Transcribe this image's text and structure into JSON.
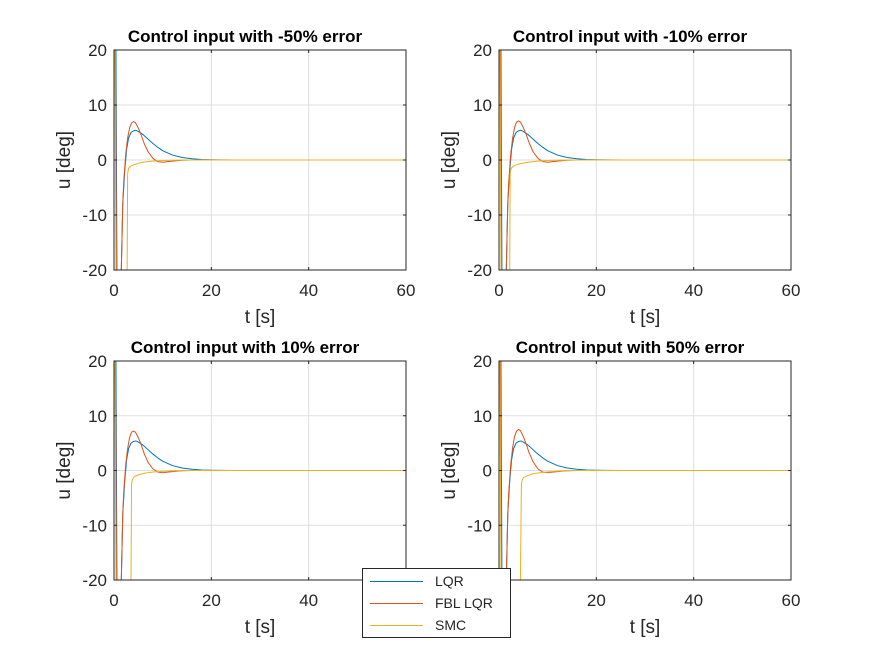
{
  "figure": {
    "colors": {
      "LQR": "#0072BD",
      "FBL LQR": "#D95319",
      "SMC": "#EDB120",
      "axis": "#262626",
      "grid": "#dfdfdf"
    }
  },
  "legend": {
    "location": "bottom-center",
    "entries": [
      {
        "name": "LQR",
        "color": "#0072BD"
      },
      {
        "name": "FBL LQR",
        "color": "#D95319"
      },
      {
        "name": "SMC",
        "color": "#EDB120"
      }
    ]
  },
  "chart_data": [
    {
      "type": "line",
      "title": "Control input with -50% error",
      "xlabel": "t [s]",
      "ylabel": "u [deg]",
      "xlim": [
        0,
        60
      ],
      "ylim": [
        -20,
        20
      ],
      "xticks": [
        "0",
        "20",
        "40",
        "60"
      ],
      "yticks": [
        "-20",
        "-10",
        "0",
        "10",
        "20"
      ],
      "grid": true,
      "series": [
        {
          "name": "LQR",
          "x": [
            0,
            0.2,
            0.4,
            0.6,
            0.8,
            1.2,
            1.5,
            1.8,
            2.2,
            2.6,
            3.0,
            3.5,
            4.0,
            4.5,
            5.0,
            6.0,
            7.0,
            8.0,
            9.0,
            10,
            12,
            14,
            16,
            18,
            20,
            22,
            25,
            30,
            40,
            50,
            60
          ],
          "y": [
            20,
            20,
            20,
            -20,
            -20,
            -20,
            -20,
            -8,
            -2,
            2,
            4,
            5,
            5.3,
            5.4,
            5.2,
            4.6,
            3.8,
            3.0,
            2.3,
            1.7,
            0.9,
            0.45,
            0.22,
            0.1,
            0.05,
            0.02,
            0,
            0,
            0,
            0,
            0
          ]
        },
        {
          "name": "FBL LQR",
          "x": [
            0,
            0.2,
            0.3,
            0.5,
            0.8,
            1.2,
            1.5,
            1.8,
            2.0,
            2.4,
            2.8,
            3.2,
            3.6,
            4.0,
            4.4,
            5.0,
            5.6,
            6.2,
            7.0,
            8.0,
            9.0,
            10,
            11,
            12,
            14,
            16,
            20,
            30,
            40,
            50,
            60
          ],
          "y": [
            20,
            20,
            20,
            -20,
            -20,
            -20,
            -20,
            -8,
            -4,
            1,
            4,
            5.8,
            6.7,
            7.0,
            6.8,
            5.8,
            4.5,
            3.0,
            1.5,
            0.3,
            -0.3,
            -0.4,
            -0.3,
            -0.2,
            -0.05,
            0,
            0,
            0,
            0,
            0,
            0
          ]
        },
        {
          "name": "SMC",
          "x": [
            0,
            0.1,
            0.2,
            0.4,
            0.8,
            1.2,
            1.8,
            2.4,
            2.7,
            2.8,
            3.0,
            3.5,
            4.0,
            5.0,
            6.0,
            7.0,
            8.0,
            10,
            12,
            15,
            20,
            30,
            40,
            50,
            60
          ],
          "y": [
            20,
            20,
            20,
            -20,
            -20,
            -20,
            -20,
            -20,
            -20,
            -2.5,
            -1.5,
            -1.1,
            -0.9,
            -0.6,
            -0.4,
            -0.3,
            -0.2,
            -0.1,
            -0.05,
            0,
            0,
            0,
            0,
            0,
            0
          ]
        }
      ]
    },
    {
      "type": "line",
      "title": "Control input with -10% error",
      "xlabel": "t [s]",
      "ylabel": "u [deg]",
      "xlim": [
        0,
        60
      ],
      "ylim": [
        -20,
        20
      ],
      "xticks": [
        "0",
        "20",
        "40",
        "60"
      ],
      "yticks": [
        "-20",
        "-10",
        "0",
        "10",
        "20"
      ],
      "grid": true,
      "series": [
        {
          "name": "LQR",
          "x": [
            0,
            0.2,
            0.4,
            0.6,
            0.8,
            1.2,
            1.5,
            1.8,
            2.2,
            2.6,
            3.0,
            3.5,
            4.0,
            4.5,
            5.0,
            6.0,
            7.0,
            8.0,
            9.0,
            10,
            12,
            14,
            16,
            18,
            20,
            22,
            25,
            30,
            40,
            50,
            60
          ],
          "y": [
            20,
            20,
            20,
            -20,
            -20,
            -20,
            -20,
            -8,
            -2,
            2,
            4,
            5,
            5.3,
            5.4,
            5.2,
            4.6,
            3.8,
            3.0,
            2.3,
            1.7,
            0.9,
            0.45,
            0.22,
            0.1,
            0.05,
            0.02,
            0,
            0,
            0,
            0,
            0
          ]
        },
        {
          "name": "FBL LQR",
          "x": [
            0,
            0.2,
            0.3,
            0.5,
            0.8,
            1.2,
            1.5,
            1.8,
            2.0,
            2.4,
            2.8,
            3.2,
            3.6,
            4.0,
            4.4,
            5.0,
            5.6,
            6.2,
            7.0,
            8.0,
            9.0,
            10,
            11,
            12,
            14,
            16,
            20,
            30,
            40,
            50,
            60
          ],
          "y": [
            20,
            20,
            20,
            -20,
            -20,
            -20,
            -20,
            -8,
            -4,
            1,
            4,
            5.9,
            6.9,
            7.1,
            6.9,
            5.9,
            4.6,
            3.1,
            1.5,
            0.3,
            -0.3,
            -0.4,
            -0.3,
            -0.2,
            -0.05,
            0,
            0,
            0,
            0,
            0,
            0
          ]
        },
        {
          "name": "SMC",
          "x": [
            0,
            0.1,
            0.2,
            0.4,
            0.8,
            1.2,
            1.8,
            2.0,
            2.2,
            2.3,
            2.5,
            3.0,
            3.5,
            4.0,
            5.0,
            6.0,
            7.0,
            8.0,
            10,
            12,
            15,
            20,
            30,
            40,
            50,
            60
          ],
          "y": [
            20,
            20,
            20,
            -20,
            -20,
            -20,
            -20,
            -20,
            -20,
            -2.5,
            -1.5,
            -1.1,
            -0.9,
            -0.75,
            -0.55,
            -0.4,
            -0.3,
            -0.2,
            -0.1,
            -0.05,
            0,
            0,
            0,
            0,
            0,
            0
          ]
        }
      ]
    },
    {
      "type": "line",
      "title": "Control input with 10% error",
      "xlabel": "t [s]",
      "ylabel": "u [deg]",
      "xlim": [
        0,
        60
      ],
      "ylim": [
        -20,
        20
      ],
      "xticks": [
        "0",
        "20",
        "40",
        "60"
      ],
      "yticks": [
        "-20",
        "-10",
        "0",
        "10",
        "20"
      ],
      "grid": true,
      "series": [
        {
          "name": "LQR",
          "x": [
            0,
            0.2,
            0.4,
            0.6,
            0.8,
            1.2,
            1.5,
            1.8,
            2.2,
            2.6,
            3.0,
            3.5,
            4.0,
            4.5,
            5.0,
            6.0,
            7.0,
            8.0,
            9.0,
            10,
            12,
            14,
            16,
            18,
            20,
            22,
            25,
            30,
            40,
            50,
            60
          ],
          "y": [
            20,
            20,
            20,
            -20,
            -20,
            -20,
            -20,
            -8,
            -2,
            2,
            4,
            5,
            5.3,
            5.4,
            5.2,
            4.6,
            3.8,
            3.0,
            2.3,
            1.7,
            0.9,
            0.45,
            0.22,
            0.1,
            0.05,
            0.02,
            0,
            0,
            0,
            0,
            0
          ]
        },
        {
          "name": "FBL LQR",
          "x": [
            0,
            0.2,
            0.3,
            0.5,
            0.8,
            1.2,
            1.5,
            1.8,
            2.0,
            2.4,
            2.8,
            3.2,
            3.6,
            4.0,
            4.4,
            5.0,
            5.6,
            6.2,
            7.0,
            8.0,
            9.0,
            10,
            11,
            12,
            14,
            16,
            20,
            30,
            40,
            50,
            60
          ],
          "y": [
            20,
            20,
            20,
            -20,
            -20,
            -20,
            -20,
            -8,
            -4,
            1,
            4,
            6.0,
            7.0,
            7.2,
            7.0,
            6.0,
            4.7,
            3.1,
            1.5,
            0.3,
            -0.3,
            -0.4,
            -0.3,
            -0.2,
            -0.05,
            0,
            0,
            0,
            0,
            0,
            0
          ]
        },
        {
          "name": "SMC",
          "x": [
            0,
            0.1,
            0.2,
            0.4,
            0.8,
            1.2,
            1.8,
            2.4,
            3.0,
            3.5,
            3.6,
            3.8,
            4.2,
            5.0,
            6.0,
            7.0,
            8.0,
            10,
            12,
            15,
            20,
            30,
            40,
            50,
            60
          ],
          "y": [
            20,
            20,
            20,
            -20,
            -20,
            -20,
            -20,
            -20,
            -20,
            -20,
            -2.5,
            -1.6,
            -1.1,
            -0.8,
            -0.55,
            -0.4,
            -0.28,
            -0.15,
            -0.07,
            0,
            0,
            0,
            0,
            0,
            0
          ]
        }
      ]
    },
    {
      "type": "line",
      "title": "Control input with 50% error",
      "xlabel": "t [s]",
      "ylabel": "u [deg]",
      "xlim": [
        0,
        60
      ],
      "ylim": [
        -20,
        20
      ],
      "xticks": [
        "0",
        "20",
        "40",
        "60"
      ],
      "yticks": [
        "-20",
        "-10",
        "0",
        "10",
        "20"
      ],
      "grid": true,
      "series": [
        {
          "name": "LQR",
          "x": [
            0,
            0.2,
            0.4,
            0.6,
            0.8,
            1.2,
            1.5,
            1.8,
            2.2,
            2.6,
            3.0,
            3.5,
            4.0,
            4.5,
            5.0,
            6.0,
            7.0,
            8.0,
            9.0,
            10,
            12,
            14,
            16,
            18,
            20,
            22,
            25,
            30,
            40,
            50,
            60
          ],
          "y": [
            20,
            20,
            20,
            -20,
            -20,
            -20,
            -20,
            -8,
            -2,
            2,
            4,
            5,
            5.3,
            5.4,
            5.2,
            4.6,
            3.8,
            3.0,
            2.3,
            1.7,
            0.9,
            0.45,
            0.22,
            0.1,
            0.05,
            0.02,
            0,
            0,
            0,
            0,
            0
          ]
        },
        {
          "name": "FBL LQR",
          "x": [
            0,
            0.2,
            0.3,
            0.5,
            0.8,
            1.2,
            1.5,
            1.8,
            2.0,
            2.4,
            2.8,
            3.2,
            3.6,
            4.0,
            4.4,
            5.0,
            5.6,
            6.2,
            7.0,
            8.0,
            9.0,
            10,
            11,
            12,
            14,
            16,
            20,
            30,
            40,
            50,
            60
          ],
          "y": [
            20,
            20,
            20,
            -20,
            -20,
            -20,
            -20,
            -8,
            -4,
            1,
            4.2,
            6.2,
            7.2,
            7.5,
            7.3,
            6.2,
            4.8,
            3.2,
            1.6,
            0.3,
            -0.3,
            -0.4,
            -0.3,
            -0.2,
            -0.05,
            0,
            0,
            0,
            0,
            0,
            0
          ]
        },
        {
          "name": "SMC",
          "x": [
            0,
            0.1,
            0.2,
            0.4,
            0.8,
            1.2,
            1.8,
            2.4,
            3.0,
            3.6,
            4.0,
            4.4,
            4.6,
            4.8,
            5.2,
            6.0,
            7.0,
            8.0,
            10,
            12,
            15,
            20,
            30,
            40,
            50,
            60
          ],
          "y": [
            20,
            20,
            20,
            -20,
            -20,
            -20,
            -20,
            -20,
            -20,
            -20,
            -20,
            -20,
            -2.5,
            -1.6,
            -1.2,
            -0.9,
            -0.6,
            -0.45,
            -0.25,
            -0.12,
            0,
            0,
            0,
            0,
            0,
            0
          ]
        }
      ]
    }
  ]
}
